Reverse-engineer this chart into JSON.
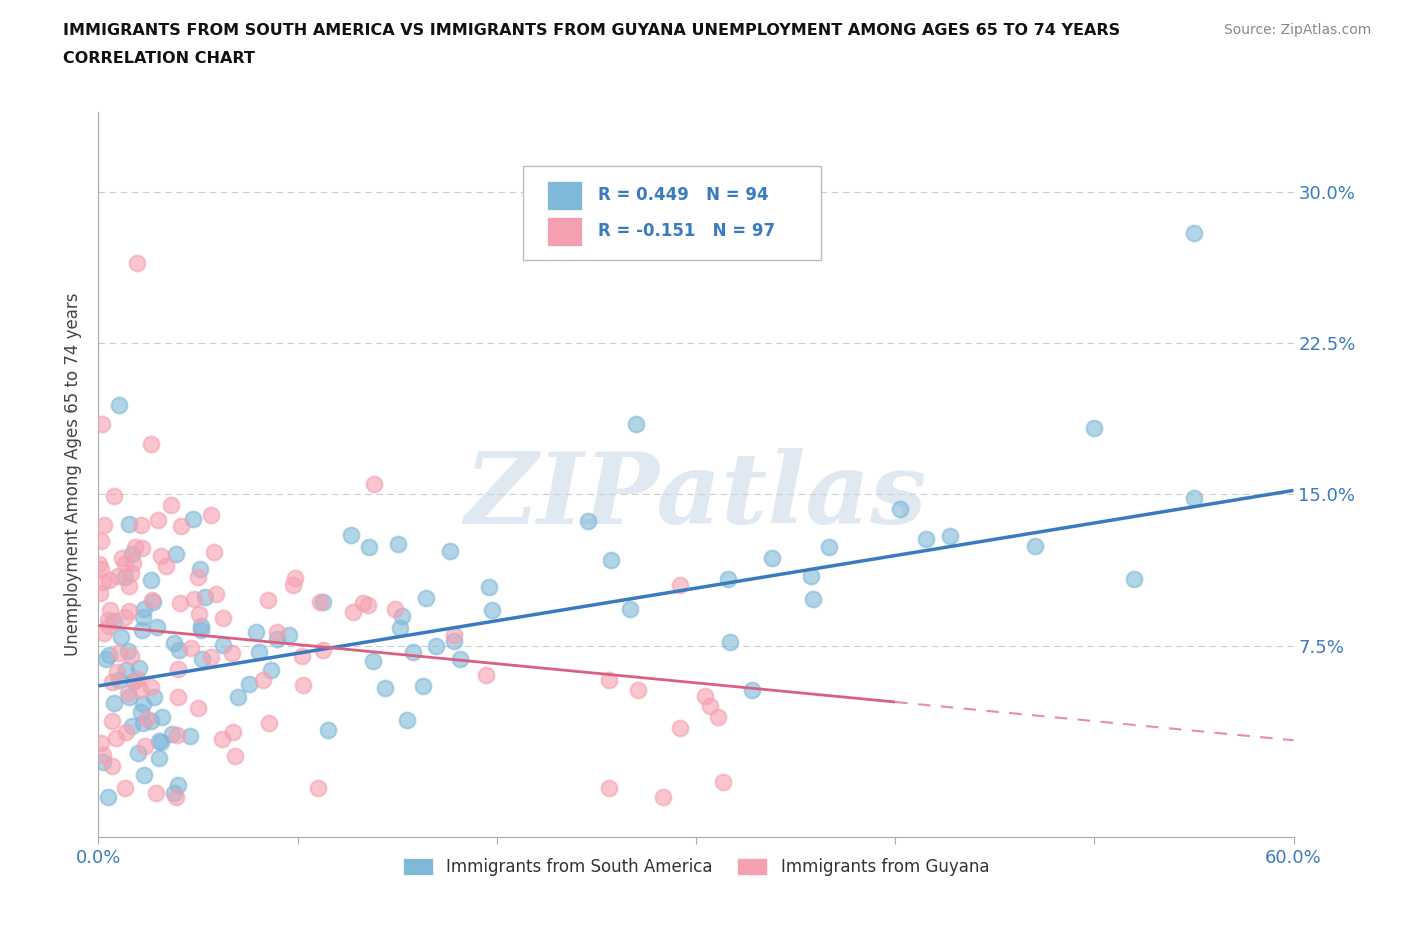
{
  "title_line1": "IMMIGRANTS FROM SOUTH AMERICA VS IMMIGRANTS FROM GUYANA UNEMPLOYMENT AMONG AGES 65 TO 74 YEARS",
  "title_line2": "CORRELATION CHART",
  "source": "Source: ZipAtlas.com",
  "ylabel": "Unemployment Among Ages 65 to 74 years",
  "xlim": [
    0.0,
    0.6
  ],
  "ylim": [
    -0.02,
    0.34
  ],
  "ytick_positions": [
    0.0,
    0.075,
    0.15,
    0.225,
    0.3
  ],
  "ytick_labels": [
    "",
    "7.5%",
    "15.0%",
    "22.5%",
    "30.0%"
  ],
  "grid_color": "#cccccc",
  "background_color": "#ffffff",
  "watermark_text": "ZIPatlas",
  "legend_R1": "R = 0.449",
  "legend_N1": "N = 94",
  "legend_R2": "R = -0.151",
  "legend_N2": "N = 97",
  "color_blue": "#7fb8d8",
  "color_blue_line": "#3a7bbf",
  "color_pink": "#f5a0b0",
  "color_pink_line": "#d96080",
  "color_text": "#3a7bbf",
  "color_pink_text": "#cc4466",
  "trend_blue_x0": 0.0,
  "trend_blue_y0": 0.055,
  "trend_blue_x1": 0.6,
  "trend_blue_y1": 0.152,
  "trend_pink_solid_x0": 0.0,
  "trend_pink_solid_y0": 0.085,
  "trend_pink_solid_x1": 0.4,
  "trend_pink_solid_y1": 0.047,
  "trend_pink_dash_x0": 0.4,
  "trend_pink_dash_y0": 0.047,
  "trend_pink_dash_x1": 0.6,
  "trend_pink_dash_y1": 0.028
}
